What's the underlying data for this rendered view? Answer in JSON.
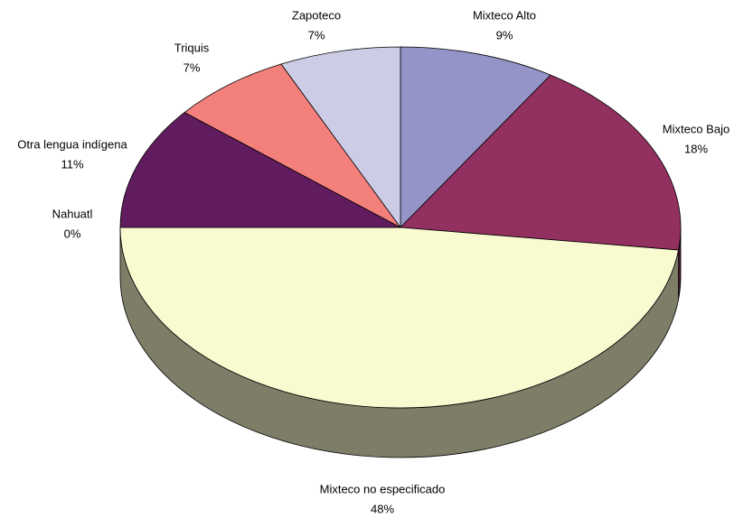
{
  "chart_data": {
    "type": "pie",
    "categories": [
      "Mixteco Alto",
      "Mixteco Bajo",
      "Mixteco no especificado",
      "Nahuatl",
      "Otra lengua indígena",
      "Triquis",
      "Zapoteco"
    ],
    "values": [
      9,
      18,
      48,
      0,
      11,
      7,
      7
    ],
    "value_labels": [
      "9%",
      "18%",
      "48%",
      "0%",
      "11%",
      "7%",
      "7%"
    ],
    "colors": [
      "#9494c8",
      "#923060",
      "#fafad0",
      "#ccffff",
      "#601c5e",
      "#f4807c",
      "#cccce6"
    ]
  }
}
